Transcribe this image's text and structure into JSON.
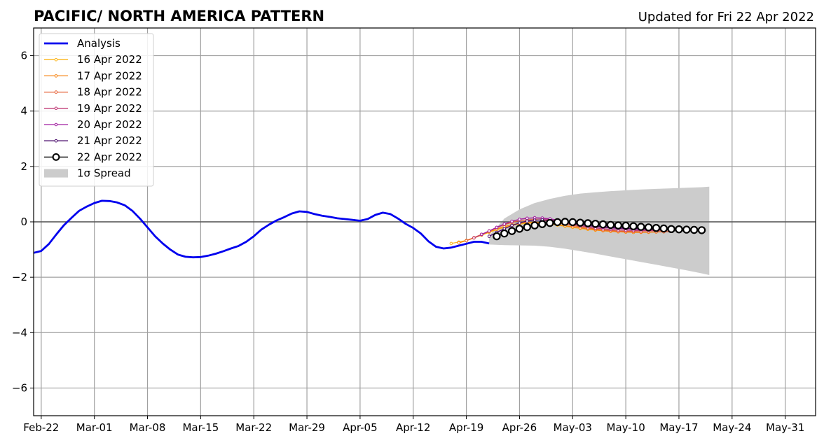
{
  "chart_data": {
    "type": "line",
    "title": "PACIFIC/ NORTH AMERICA PATTERN",
    "subtitle": "Updated for Fri 22 Apr 2022",
    "xlabel": "",
    "ylabel": "",
    "xlim": [
      "2022-02-21",
      "2022-06-04"
    ],
    "ylim": [
      -7,
      7
    ],
    "x_ticks": [
      "Feb-22",
      "Mar-01",
      "Mar-08",
      "Mar-15",
      "Mar-22",
      "Mar-29",
      "Apr-05",
      "Apr-12",
      "Apr-19",
      "Apr-26",
      "May-03",
      "May-10",
      "May-17",
      "May-24",
      "May-31"
    ],
    "y_ticks": [
      "−6",
      "−4",
      "−2",
      "0",
      "2",
      "4",
      "6"
    ],
    "grid": true,
    "legend_position": "upper-left",
    "analysis": {
      "name": "Analysis",
      "color": "#0000ee",
      "x": [
        "2022-02-21",
        "2022-02-22",
        "2022-02-23",
        "2022-02-24",
        "2022-02-25",
        "2022-02-26",
        "2022-02-27",
        "2022-02-28",
        "2022-03-01",
        "2022-03-02",
        "2022-03-03",
        "2022-03-04",
        "2022-03-05",
        "2022-03-06",
        "2022-03-07",
        "2022-03-08",
        "2022-03-09",
        "2022-03-10",
        "2022-03-11",
        "2022-03-12",
        "2022-03-13",
        "2022-03-14",
        "2022-03-15",
        "2022-03-16",
        "2022-03-17",
        "2022-03-18",
        "2022-03-19",
        "2022-03-20",
        "2022-03-21",
        "2022-03-22",
        "2022-03-23",
        "2022-03-24",
        "2022-03-25",
        "2022-03-26",
        "2022-03-27",
        "2022-03-28",
        "2022-03-29",
        "2022-03-30",
        "2022-03-31",
        "2022-04-01",
        "2022-04-02",
        "2022-04-03",
        "2022-04-04",
        "2022-04-05",
        "2022-04-06",
        "2022-04-07",
        "2022-04-08",
        "2022-04-09",
        "2022-04-10",
        "2022-04-11",
        "2022-04-12",
        "2022-04-13",
        "2022-04-14",
        "2022-04-15",
        "2022-04-16",
        "2022-04-17",
        "2022-04-18",
        "2022-04-19",
        "2022-04-20",
        "2022-04-21",
        "2022-04-22"
      ],
      "y": [
        -1.12,
        -1.05,
        -0.8,
        -0.45,
        -0.12,
        0.15,
        0.4,
        0.55,
        0.68,
        0.76,
        0.75,
        0.7,
        0.6,
        0.4,
        0.12,
        -0.2,
        -0.52,
        -0.78,
        -1.0,
        -1.18,
        -1.26,
        -1.28,
        -1.27,
        -1.22,
        -1.15,
        -1.06,
        -0.96,
        -0.87,
        -0.72,
        -0.52,
        -0.28,
        -0.1,
        0.05,
        0.17,
        0.3,
        0.38,
        0.36,
        0.28,
        0.22,
        0.18,
        0.13,
        0.1,
        0.07,
        0.04,
        0.1,
        0.25,
        0.33,
        0.28,
        0.12,
        -0.07,
        -0.22,
        -0.42,
        -0.7,
        -0.9,
        -0.96,
        -0.93,
        -0.86,
        -0.79,
        -0.72,
        -0.72,
        -0.78
      ]
    },
    "spread": {
      "name": "1σ Spread",
      "color": "#cccccc",
      "x": [
        "2022-04-22",
        "2022-04-24",
        "2022-04-26",
        "2022-04-28",
        "2022-04-30",
        "2022-05-02",
        "2022-05-04",
        "2022-05-06",
        "2022-05-08",
        "2022-05-10",
        "2022-05-12",
        "2022-05-14",
        "2022-05-16",
        "2022-05-18",
        "2022-05-20",
        "2022-05-21"
      ],
      "upper": [
        -0.5,
        0.12,
        0.45,
        0.68,
        0.83,
        0.94,
        1.02,
        1.07,
        1.11,
        1.14,
        1.17,
        1.19,
        1.21,
        1.23,
        1.25,
        1.27
      ],
      "lower": [
        -0.82,
        -0.84,
        -0.85,
        -0.86,
        -0.9,
        -0.97,
        -1.06,
        -1.15,
        -1.25,
        -1.35,
        -1.45,
        -1.55,
        -1.65,
        -1.75,
        -1.86,
        -1.92
      ]
    },
    "forecasts": [
      {
        "name": "16 Apr 2022",
        "color": "#fbb61a",
        "start": "2022-04-17",
        "y": [
          -0.78,
          -0.73,
          -0.67,
          -0.58,
          -0.48,
          -0.38,
          -0.28,
          -0.2,
          -0.13,
          -0.08,
          -0.05,
          -0.04,
          -0.05,
          -0.08,
          -0.12,
          -0.16,
          -0.2,
          -0.24,
          -0.27,
          -0.3,
          -0.32,
          -0.34,
          -0.36,
          -0.37,
          -0.38,
          -0.38,
          -0.38,
          -0.37,
          -0.36
        ]
      },
      {
        "name": "17 Apr 2022",
        "color": "#f78311",
        "start": "2022-04-18",
        "y": [
          -0.76,
          -0.68,
          -0.58,
          -0.47,
          -0.36,
          -0.26,
          -0.17,
          -0.1,
          -0.05,
          -0.02,
          -0.01,
          -0.03,
          -0.06,
          -0.1,
          -0.14,
          -0.18,
          -0.22,
          -0.26,
          -0.29,
          -0.32,
          -0.34,
          -0.36,
          -0.37,
          -0.38,
          -0.38,
          -0.37,
          -0.36,
          -0.35
        ]
      },
      {
        "name": "18 Apr 2022",
        "color": "#e55c30",
        "start": "2022-04-19",
        "y": [
          -0.68,
          -0.57,
          -0.45,
          -0.33,
          -0.21,
          -0.1,
          -0.02,
          0.04,
          0.07,
          0.08,
          0.06,
          0.02,
          -0.03,
          -0.08,
          -0.13,
          -0.18,
          -0.22,
          -0.26,
          -0.29,
          -0.31,
          -0.33,
          -0.34,
          -0.35,
          -0.36,
          -0.36,
          -0.36,
          -0.36,
          -0.35
        ]
      },
      {
        "name": "19 Apr 2022",
        "color": "#c03a76",
        "start": "2022-04-20",
        "y": [
          -0.58,
          -0.46,
          -0.33,
          -0.2,
          -0.08,
          0.02,
          0.09,
          0.13,
          0.14,
          0.12,
          0.08,
          0.02,
          -0.04,
          -0.09,
          -0.14,
          -0.18,
          -0.22,
          -0.25,
          -0.27,
          -0.29,
          -0.3,
          -0.31,
          -0.31,
          -0.31,
          -0.31,
          -0.3,
          -0.3
        ]
      },
      {
        "name": "20 Apr 2022",
        "color": "#a11fa0",
        "start": "2022-04-21",
        "y": [
          -0.45,
          -0.33,
          -0.2,
          -0.08,
          0.02,
          0.09,
          0.13,
          0.15,
          0.14,
          0.11,
          0.06,
          0.0,
          -0.05,
          -0.1,
          -0.14,
          -0.17,
          -0.2,
          -0.22,
          -0.24,
          -0.25,
          -0.26,
          -0.27,
          -0.27,
          -0.28,
          -0.28,
          -0.28
        ]
      },
      {
        "name": "21 Apr 2022",
        "color": "#4a0c6b",
        "start": "2022-04-22",
        "y": [
          -0.52,
          -0.38,
          -0.25,
          -0.13,
          -0.04,
          0.03,
          0.06,
          0.07,
          0.05,
          0.02,
          -0.02,
          -0.06,
          -0.1,
          -0.13,
          -0.16,
          -0.18,
          -0.2,
          -0.22,
          -0.23,
          -0.24,
          -0.25,
          -0.26,
          -0.26,
          -0.27,
          -0.27
        ]
      },
      {
        "name": "22 Apr 2022",
        "color": "#000000",
        "start": "2022-04-23",
        "marker": "circle",
        "y": [
          -0.52,
          -0.42,
          -0.33,
          -0.25,
          -0.19,
          -0.13,
          -0.08,
          -0.04,
          -0.01,
          0.0,
          -0.01,
          -0.03,
          -0.05,
          -0.07,
          -0.09,
          -0.11,
          -0.13,
          -0.14,
          -0.16,
          -0.18,
          -0.2,
          -0.22,
          -0.24,
          -0.26,
          -0.27,
          -0.28,
          -0.29,
          -0.3
        ]
      }
    ]
  }
}
